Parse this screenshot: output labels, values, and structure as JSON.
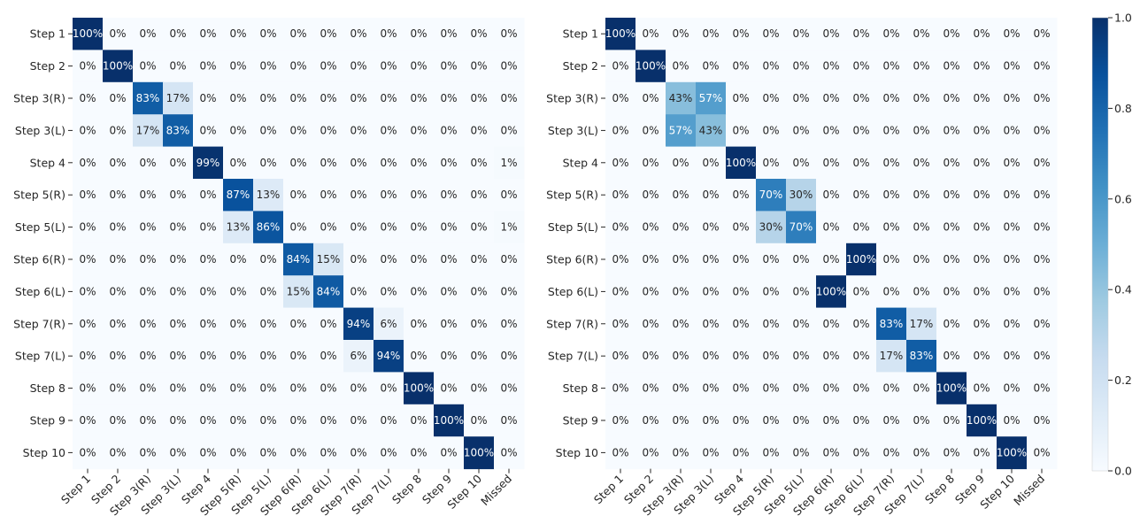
{
  "chart_data": [
    {
      "type": "heatmap",
      "rows": [
        "Step 1",
        "Step 2",
        "Step 3(R)",
        "Step 3(L)",
        "Step 4",
        "Step 5(R)",
        "Step 5(L)",
        "Step 6(R)",
        "Step 6(L)",
        "Step 7(R)",
        "Step 7(L)",
        "Step 8",
        "Step 9",
        "Step 10"
      ],
      "columns": [
        "Step 1",
        "Step 2",
        "Step 3(R)",
        "Step 3(L)",
        "Step 4",
        "Step 5(R)",
        "Step 5(L)",
        "Step 6(R)",
        "Step 6(L)",
        "Step 7(R)",
        "Step 7(L)",
        "Step 8",
        "Step 9",
        "Step 10",
        "Missed"
      ],
      "values": [
        [
          100,
          0,
          0,
          0,
          0,
          0,
          0,
          0,
          0,
          0,
          0,
          0,
          0,
          0,
          0
        ],
        [
          0,
          100,
          0,
          0,
          0,
          0,
          0,
          0,
          0,
          0,
          0,
          0,
          0,
          0,
          0
        ],
        [
          0,
          0,
          83,
          17,
          0,
          0,
          0,
          0,
          0,
          0,
          0,
          0,
          0,
          0,
          0
        ],
        [
          0,
          0,
          17,
          83,
          0,
          0,
          0,
          0,
          0,
          0,
          0,
          0,
          0,
          0,
          0
        ],
        [
          0,
          0,
          0,
          0,
          99,
          0,
          0,
          0,
          0,
          0,
          0,
          0,
          0,
          0,
          1
        ],
        [
          0,
          0,
          0,
          0,
          0,
          87,
          13,
          0,
          0,
          0,
          0,
          0,
          0,
          0,
          0
        ],
        [
          0,
          0,
          0,
          0,
          0,
          13,
          86,
          0,
          0,
          0,
          0,
          0,
          0,
          0,
          1
        ],
        [
          0,
          0,
          0,
          0,
          0,
          0,
          0,
          84,
          15,
          0,
          0,
          0,
          0,
          0,
          0
        ],
        [
          0,
          0,
          0,
          0,
          0,
          0,
          0,
          15,
          84,
          0,
          0,
          0,
          0,
          0,
          0
        ],
        [
          0,
          0,
          0,
          0,
          0,
          0,
          0,
          0,
          0,
          94,
          6,
          0,
          0,
          0,
          0
        ],
        [
          0,
          0,
          0,
          0,
          0,
          0,
          0,
          0,
          0,
          6,
          94,
          0,
          0,
          0,
          0
        ],
        [
          0,
          0,
          0,
          0,
          0,
          0,
          0,
          0,
          0,
          0,
          0,
          100,
          0,
          0,
          0
        ],
        [
          0,
          0,
          0,
          0,
          0,
          0,
          0,
          0,
          0,
          0,
          0,
          0,
          100,
          0,
          0
        ],
        [
          0,
          0,
          0,
          0,
          0,
          0,
          0,
          0,
          0,
          0,
          0,
          0,
          0,
          100,
          0
        ]
      ],
      "value_suffix": "%"
    },
    {
      "type": "heatmap",
      "rows": [
        "Step 1",
        "Step 2",
        "Step 3(R)",
        "Step 3(L)",
        "Step 4",
        "Step 5(R)",
        "Step 5(L)",
        "Step 6(R)",
        "Step 6(L)",
        "Step 7(R)",
        "Step 7(L)",
        "Step 8",
        "Step 9",
        "Step 10"
      ],
      "columns": [
        "Step 1",
        "Step 2",
        "Step 3(R)",
        "Step 3(L)",
        "Step 4",
        "Step 5(R)",
        "Step 5(L)",
        "Step 6(R)",
        "Step 6(L)",
        "Step 7(R)",
        "Step 7(L)",
        "Step 8",
        "Step 9",
        "Step 10",
        "Missed"
      ],
      "values": [
        [
          100,
          0,
          0,
          0,
          0,
          0,
          0,
          0,
          0,
          0,
          0,
          0,
          0,
          0,
          0
        ],
        [
          0,
          100,
          0,
          0,
          0,
          0,
          0,
          0,
          0,
          0,
          0,
          0,
          0,
          0,
          0
        ],
        [
          0,
          0,
          43,
          57,
          0,
          0,
          0,
          0,
          0,
          0,
          0,
          0,
          0,
          0,
          0
        ],
        [
          0,
          0,
          57,
          43,
          0,
          0,
          0,
          0,
          0,
          0,
          0,
          0,
          0,
          0,
          0
        ],
        [
          0,
          0,
          0,
          0,
          100,
          0,
          0,
          0,
          0,
          0,
          0,
          0,
          0,
          0,
          0
        ],
        [
          0,
          0,
          0,
          0,
          0,
          70,
          30,
          0,
          0,
          0,
          0,
          0,
          0,
          0,
          0
        ],
        [
          0,
          0,
          0,
          0,
          0,
          30,
          70,
          0,
          0,
          0,
          0,
          0,
          0,
          0,
          0
        ],
        [
          0,
          0,
          0,
          0,
          0,
          0,
          0,
          0,
          100,
          0,
          0,
          0,
          0,
          0,
          0
        ],
        [
          0,
          0,
          0,
          0,
          0,
          0,
          0,
          100,
          0,
          0,
          0,
          0,
          0,
          0,
          0
        ],
        [
          0,
          0,
          0,
          0,
          0,
          0,
          0,
          0,
          0,
          83,
          17,
          0,
          0,
          0,
          0
        ],
        [
          0,
          0,
          0,
          0,
          0,
          0,
          0,
          0,
          0,
          17,
          83,
          0,
          0,
          0,
          0
        ],
        [
          0,
          0,
          0,
          0,
          0,
          0,
          0,
          0,
          0,
          0,
          0,
          100,
          0,
          0,
          0
        ],
        [
          0,
          0,
          0,
          0,
          0,
          0,
          0,
          0,
          0,
          0,
          0,
          0,
          100,
          0,
          0
        ],
        [
          0,
          0,
          0,
          0,
          0,
          0,
          0,
          0,
          0,
          0,
          0,
          0,
          0,
          100,
          0
        ]
      ],
      "value_suffix": "%"
    }
  ],
  "colorbar": {
    "min": 0.0,
    "max": 1.0,
    "ticks": [
      "0.0",
      "0.2",
      "0.4",
      "0.6",
      "0.8",
      "1.0"
    ],
    "colormap": "Blues",
    "color_low": "#f7fbff",
    "color_high": "#08306b"
  }
}
